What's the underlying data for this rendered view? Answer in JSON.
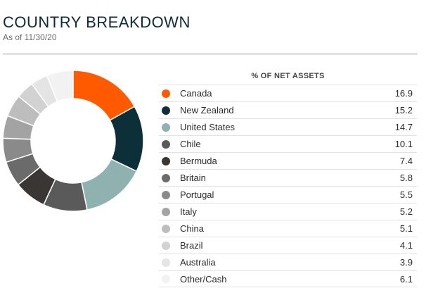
{
  "header": {
    "title": "COUNTRY BREAKDOWN",
    "as_of": "As of 11/30/20"
  },
  "table": {
    "column_header": "% OF NET ASSETS"
  },
  "chart_data": {
    "type": "pie",
    "donut": true,
    "legend_placement": "right",
    "column_header": "% OF NET ASSETS",
    "categories": [
      "Canada",
      "New Zealand",
      "United States",
      "Chile",
      "Bermuda",
      "Britain",
      "Portugal",
      "Italy",
      "China",
      "Brazil",
      "Australia",
      "Other/Cash"
    ],
    "values": [
      16.9,
      15.2,
      14.7,
      10.1,
      7.4,
      5.8,
      5.5,
      5.2,
      5.1,
      4.1,
      3.9,
      6.1
    ],
    "value_labels": [
      "16.9",
      "15.2",
      "14.7",
      "10.1",
      "7.4",
      "5.8",
      "5.5",
      "5.2",
      "5.1",
      "4.1",
      "3.9",
      "6.1"
    ],
    "colors": [
      "#ff5a00",
      "#0c2f3a",
      "#8fb1b0",
      "#5a5a5a",
      "#3a3633",
      "#6b6b6b",
      "#8a8a8a",
      "#a3a3a3",
      "#bdbdbd",
      "#d2d2d2",
      "#e4e4e4",
      "#f2f2f2"
    ]
  }
}
